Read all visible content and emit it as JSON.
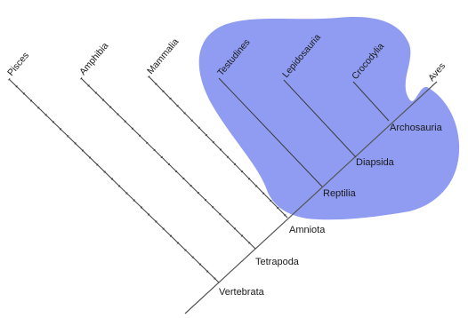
{
  "colors": {
    "reptilia_region": "#8f9cf2",
    "lines": "#3a3a3a"
  },
  "taxa": {
    "pisces": "Pisces",
    "amphibia": "Amphibia",
    "mammalia": "Mammalia",
    "testudines": "Testudines",
    "lepidosauria": "Lepidosauria",
    "crocodylia": "Crocodylia",
    "aves": "Aves"
  },
  "clades": {
    "vertebrata": "Vertebrata",
    "tetrapoda": "Tetrapoda",
    "amniota": "Amniota",
    "reptilia": "Reptilia",
    "diapsida": "Diapsida",
    "archosauria": "Archosauria"
  }
}
